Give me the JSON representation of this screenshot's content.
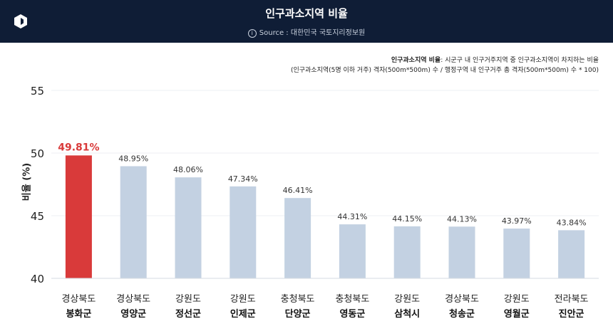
{
  "header": {
    "title": "인구과소지역 비율",
    "source": "Source : 대한민국 국토지리정보원"
  },
  "definition": {
    "term": "인구과소지역 비율",
    "text": ": 시군구 내 인구거주지역 중 인구과소지역이 차지하는 비율",
    "formula": "(인구과소지역(5명 이하 거주) 격자(500m*500m) 수 / 행정구역 내 인구거주 총 격자(500m*500m) 수 * 100)"
  },
  "colors": {
    "header_bg": "#0f1d36",
    "highlight": "#d93a3a",
    "bar": "#c3d1e2"
  },
  "chart_data": {
    "type": "bar",
    "ylabel": "비율 (%)",
    "ylim": [
      40,
      55
    ],
    "yticks": [
      40,
      45,
      50,
      55
    ],
    "categories": [
      {
        "province": "경상북도",
        "county": "봉화군"
      },
      {
        "province": "경상북도",
        "county": "영양군"
      },
      {
        "province": "강원도",
        "county": "정선군"
      },
      {
        "province": "강원도",
        "county": "인제군"
      },
      {
        "province": "충청북도",
        "county": "단양군"
      },
      {
        "province": "충청북도",
        "county": "영동군"
      },
      {
        "province": "강원도",
        "county": "삼척시"
      },
      {
        "province": "경상북도",
        "county": "청송군"
      },
      {
        "province": "강원도",
        "county": "영월군"
      },
      {
        "province": "전라북도",
        "county": "진안군"
      }
    ],
    "values": [
      49.81,
      48.95,
      48.06,
      47.34,
      46.41,
      44.31,
      44.15,
      44.13,
      43.97,
      43.84
    ],
    "value_labels": [
      "49.81%",
      "48.95%",
      "48.06%",
      "47.34%",
      "46.41%",
      "44.31%",
      "44.15%",
      "44.13%",
      "43.97%",
      "43.84%"
    ],
    "highlight_index": 0
  }
}
